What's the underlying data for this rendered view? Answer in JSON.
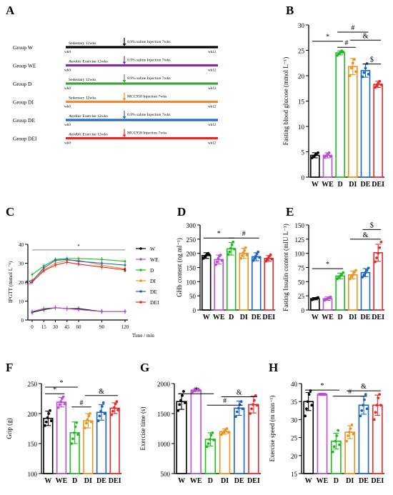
{
  "panel_letters": [
    "A",
    "B",
    "C",
    "D",
    "E",
    "F",
    "G",
    "H"
  ],
  "colors": {
    "W": "#000000",
    "WE": "#b94fd6",
    "D": "#1fbd1f",
    "DI": "#f0931d",
    "DE": "#1b63c4",
    "DEI": "#ee2727",
    "axis": "#000000"
  },
  "panel_a": {
    "groups": [
      {
        "name": "Group W",
        "color": "#000000",
        "before": "Sedentary 12wks",
        "after": "0.9% saline Injection 7wks",
        "arrow_color": "#000000"
      },
      {
        "name": "Group WE",
        "color": "#7d2fa0",
        "before": "Aerobic Exercise 12wks",
        "after": "0.9% saline Injection 7wks",
        "arrow_color": "#7d2fa0"
      },
      {
        "name": "Group D",
        "color": "#3aa53a",
        "before": "Sedentary 12wks",
        "after": "0.9% saline Injection 7wks",
        "arrow_color": "#3aa53a"
      },
      {
        "name": "Group DI",
        "color": "#f08a2c",
        "before": "Sedentary 12wks",
        "after": "MCC950 Injection 7wks",
        "arrow_color": "#f08a2c"
      },
      {
        "name": "Group DE",
        "color": "#2a6db5",
        "before": "Aerobic Exercise 12wks",
        "after": "0.9% saline Injection 7wks",
        "arrow_color": "#2a6db5"
      },
      {
        "name": "Group DEI",
        "color": "#e82525",
        "before": "Aerobic Exercise 12wks",
        "after": "MCC950 Injection 7wks",
        "arrow_color": "#e82525"
      }
    ],
    "start_label": "wk0",
    "end_label": "wk12"
  },
  "chart_data": [
    {
      "panel": "B",
      "type": "bar",
      "categories": [
        "W",
        "WE",
        "D",
        "DI",
        "DE",
        "DEI"
      ],
      "values": [
        4.3,
        4.3,
        24.5,
        21.8,
        21.0,
        18.3
      ],
      "errors": [
        0.5,
        0.5,
        0.4,
        1.6,
        1.3,
        0.6
      ],
      "points": [
        [
          3.8,
          4.0,
          4.3,
          4.6,
          4.8
        ],
        [
          3.9,
          4.2,
          4.5,
          4.8,
          4.1
        ],
        [
          24.0,
          24.3,
          24.6,
          24.9,
          24.7
        ],
        [
          20.0,
          21.5,
          22.5,
          23.2,
          20.8
        ],
        [
          19.8,
          20.6,
          21.5,
          22.4,
          20.3
        ],
        [
          17.7,
          18.0,
          18.5,
          18.9,
          18.2
        ]
      ],
      "ylabel": "Fasting blood glucose (mmol L⁻¹)",
      "ylim": [
        0,
        30
      ],
      "yticks": [
        0,
        5,
        10,
        15,
        20,
        25,
        30
      ],
      "sig": [
        {
          "from": 0,
          "to": 2,
          "label": "*",
          "y": 26.8
        },
        {
          "from": 2,
          "to": 4,
          "label": "#",
          "y": 28.6
        },
        {
          "from": 2,
          "to": 3,
          "label": "#",
          "y": 25.6
        },
        {
          "from": 3,
          "to": 5,
          "label": "&",
          "y": 27.0
        },
        {
          "from": 4,
          "to": 5,
          "label": "$",
          "y": 22.3
        }
      ]
    },
    {
      "panel": "C",
      "type": "line",
      "x": [
        0,
        15,
        30,
        45,
        60,
        90,
        120
      ],
      "xlabel": "Time / min",
      "ylabel": "IPGTT (mmol L⁻¹)",
      "ylim": [
        0,
        40
      ],
      "yticks": [
        0,
        10,
        20,
        30,
        40
      ],
      "series": [
        {
          "name": "W",
          "values": [
            4.0,
            5.5,
            6.5,
            6.0,
            6.0,
            4.5,
            4.5
          ]
        },
        {
          "name": "WE",
          "values": [
            4.5,
            6.0,
            6.5,
            6.0,
            5.5,
            4.5,
            4.5
          ]
        },
        {
          "name": "D",
          "values": [
            24.0,
            28.5,
            32.0,
            32.5,
            32.5,
            32.0,
            31.0
          ]
        },
        {
          "name": "DI",
          "values": [
            21.0,
            26.5,
            30.0,
            31.5,
            31.5,
            29.0,
            27.0
          ]
        },
        {
          "name": "DE",
          "values": [
            20.5,
            27.5,
            31.5,
            32.0,
            31.0,
            30.0,
            29.0
          ]
        },
        {
          "name": "DEI",
          "values": [
            20.0,
            26.0,
            29.0,
            30.5,
            29.5,
            28.0,
            26.5
          ]
        }
      ],
      "sig_line": {
        "y": 37,
        "label": "*"
      },
      "annotations": [
        {
          "text": "&$",
          "x": 0,
          "y": 19
        },
        {
          "text": "$",
          "x": 120,
          "y": 25.5
        }
      ]
    },
    {
      "panel": "D",
      "type": "bar",
      "categories": [
        "W",
        "WE",
        "D",
        "DI",
        "DE",
        "DEI"
      ],
      "values": [
        192,
        178,
        216,
        200,
        188,
        182
      ],
      "errors": [
        10,
        16,
        22,
        18,
        14,
        10
      ],
      "points": [
        [
          182,
          186,
          192,
          196,
          200,
          195
        ],
        [
          160,
          170,
          182,
          190,
          194,
          175
        ],
        [
          196,
          205,
          218,
          230,
          240,
          215
        ],
        [
          182,
          192,
          202,
          210,
          220,
          194
        ],
        [
          175,
          182,
          190,
          198,
          205,
          186
        ],
        [
          172,
          178,
          184,
          190,
          195,
          180
        ]
      ],
      "ylabel": "GHb content (ng ml⁻¹)",
      "ylim": [
        0,
        300
      ],
      "yticks": [
        0,
        50,
        100,
        150,
        200,
        250,
        300
      ],
      "sig": [
        {
          "from": 0,
          "to": 2,
          "label": "*",
          "y": 254
        },
        {
          "from": 2,
          "to": 4,
          "label": "#",
          "y": 254
        }
      ]
    },
    {
      "panel": "E",
      "type": "bar",
      "categories": [
        "W",
        "WE",
        "D",
        "DI",
        "DE",
        "DEI"
      ],
      "values": [
        20,
        20,
        60,
        62,
        66,
        101
      ],
      "errors": [
        2,
        3,
        5,
        7,
        7,
        15
      ],
      "points": [
        [
          18,
          19,
          20,
          21,
          22
        ],
        [
          17,
          19,
          20,
          22,
          23
        ],
        [
          55,
          58,
          60,
          63,
          66
        ],
        [
          55,
          59,
          62,
          66,
          70
        ],
        [
          58,
          62,
          66,
          70,
          74
        ],
        [
          85,
          92,
          100,
          110,
          120
        ]
      ],
      "ylabel": "Fasting Insulin content (mIU L⁻¹)",
      "ylim": [
        0,
        150
      ],
      "yticks": [
        0,
        25,
        50,
        75,
        100,
        125,
        150
      ],
      "sig": [
        {
          "from": 0,
          "to": 2,
          "label": "*",
          "y": 73
        },
        {
          "from": 3,
          "to": 5,
          "label": "&",
          "y": 125
        },
        {
          "from": 4,
          "to": 5,
          "label": "$",
          "y": 142
        }
      ]
    },
    {
      "panel": "F",
      "type": "bar",
      "categories": [
        "W",
        "WE",
        "D",
        "DI",
        "DE",
        "DEI"
      ],
      "values": [
        192,
        219,
        168,
        188,
        202,
        209
      ],
      "errors": [
        12,
        8,
        18,
        12,
        13,
        9
      ],
      "points": [
        [
          180,
          186,
          193,
          200,
          205,
          188
        ],
        [
          210,
          215,
          220,
          225,
          228,
          216
        ],
        [
          150,
          158,
          168,
          178,
          185,
          165
        ],
        [
          176,
          184,
          190,
          196,
          200,
          186
        ],
        [
          188,
          196,
          204,
          212,
          218,
          200
        ],
        [
          198,
          204,
          210,
          216,
          220,
          206
        ]
      ],
      "ylabel": "Grip (g)",
      "ylim": [
        100,
        250
      ],
      "yticks": [
        100,
        150,
        200,
        250
      ],
      "sig": [
        {
          "from": 0,
          "to": 1,
          "label": "*",
          "y": 233
        },
        {
          "from": 0,
          "to": 2,
          "label": "*",
          "y": 244
        },
        {
          "from": 2,
          "to": 3,
          "label": "#",
          "y": 211
        },
        {
          "from": 3,
          "to": 5,
          "label": "&",
          "y": 230
        }
      ]
    },
    {
      "panel": "G",
      "type": "bar",
      "categories": [
        "W",
        "WE",
        "D",
        "DI",
        "DE",
        "DEI"
      ],
      "values": [
        1700,
        1890,
        1070,
        1200,
        1590,
        1650
      ],
      "errors": [
        130,
        25,
        110,
        45,
        120,
        140
      ],
      "points": [
        [
          1550,
          1650,
          1720,
          1800,
          1870,
          1680
        ],
        [
          1860,
          1880,
          1895,
          1905,
          1910,
          1890
        ],
        [
          950,
          1000,
          1070,
          1140,
          1180,
          1060
        ],
        [
          1150,
          1180,
          1200,
          1230,
          1250,
          1190
        ],
        [
          1450,
          1530,
          1590,
          1650,
          1700,
          1580
        ],
        [
          1500,
          1580,
          1650,
          1720,
          1800,
          1640
        ]
      ],
      "ylabel": "Exercise time (s)",
      "ylim": [
        500,
        2000
      ],
      "yticks": [
        500,
        1000,
        1500,
        2000
      ],
      "sig": [
        {
          "from": 0,
          "to": 2,
          "label": "*",
          "y": 1830
        },
        {
          "from": 2,
          "to": 4,
          "label": "#",
          "y": 1640
        },
        {
          "from": 3,
          "to": 5,
          "label": "&",
          "y": 1780
        }
      ]
    },
    {
      "panel": "H",
      "type": "bar",
      "categories": [
        "W",
        "WE",
        "D",
        "DI",
        "DE",
        "DEI"
      ],
      "values": [
        35,
        37,
        24,
        26.5,
        34,
        34
      ],
      "errors": [
        2.5,
        0.3,
        2.2,
        1.8,
        2.5,
        2.8
      ],
      "points": [
        [
          31,
          33,
          35,
          37,
          38,
          34
        ],
        [
          37,
          37,
          37,
          37,
          37,
          37
        ],
        [
          21,
          22.5,
          24,
          25.5,
          27,
          23
        ],
        [
          24,
          25.5,
          26.5,
          27.5,
          28.5,
          26
        ],
        [
          31,
          32.5,
          34,
          35.5,
          37,
          33
        ],
        [
          30,
          32,
          34,
          36,
          37,
          34
        ]
      ],
      "ylabel": "Exercise speed (m min⁻¹)",
      "ylim": [
        15,
        40
      ],
      "yticks": [
        15,
        20,
        25,
        30,
        35,
        40
      ],
      "sig": [
        {
          "from": 0,
          "to": 2,
          "label": "*",
          "y": 38.2
        },
        {
          "from": 2,
          "to": 4,
          "label": "#",
          "y": 36.5
        },
        {
          "from": 3,
          "to": 5,
          "label": "&",
          "y": 38.0
        }
      ]
    }
  ]
}
